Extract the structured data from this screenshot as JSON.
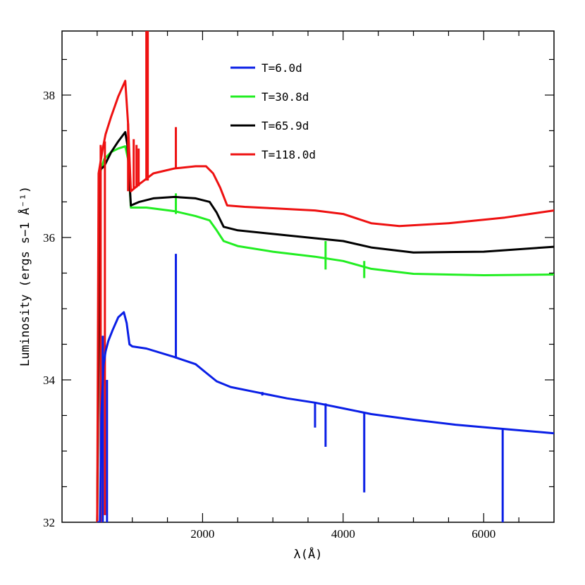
{
  "chart_data": {
    "type": "line",
    "title": "",
    "xlabel": "λ(Å)",
    "ylabel": "Luminosity (ergs s−1 Å⁻¹)",
    "xlim": [
      0,
      7000
    ],
    "ylim": [
      32,
      38.9
    ],
    "x_ticks": [
      2000,
      4000,
      6000
    ],
    "y_ticks": [
      32,
      34,
      36,
      38
    ],
    "grid": false,
    "legend_position": "top-center",
    "series": [
      {
        "name": "T=6.0d",
        "color": "#0a1fe6",
        "points": [
          [
            500,
            32.0
          ],
          [
            540,
            32.0
          ],
          [
            560,
            33.5
          ],
          [
            590,
            34.2
          ],
          [
            620,
            34.4
          ],
          [
            660,
            34.55
          ],
          [
            720,
            34.7
          ],
          [
            800,
            34.88
          ],
          [
            880,
            34.95
          ],
          [
            920,
            34.8
          ],
          [
            960,
            34.5
          ],
          [
            1000,
            34.47
          ],
          [
            1200,
            34.44
          ],
          [
            1600,
            34.32
          ],
          [
            1900,
            34.22
          ],
          [
            2050,
            34.1
          ],
          [
            2200,
            33.98
          ],
          [
            2400,
            33.9
          ],
          [
            2800,
            33.82
          ],
          [
            3200,
            33.74
          ],
          [
            3600,
            33.68
          ],
          [
            4000,
            33.6
          ],
          [
            4400,
            33.52
          ],
          [
            5000,
            33.44
          ],
          [
            5600,
            33.37
          ],
          [
            6300,
            33.31
          ],
          [
            7000,
            33.25
          ]
        ],
        "spikes": [
          [
            580,
            34.62,
            31.95
          ],
          [
            640,
            34.0,
            31.95
          ],
          [
            1620,
            35.77,
            34.3
          ],
          [
            2850,
            33.83,
            33.78
          ],
          [
            3600,
            33.68,
            33.33
          ],
          [
            3750,
            33.67,
            33.06
          ],
          [
            4300,
            33.55,
            32.42
          ],
          [
            6270,
            33.3,
            31.95
          ]
        ]
      },
      {
        "name": "T=30.8d",
        "color": "#22ee22",
        "points": [
          [
            500,
            32.0
          ],
          [
            540,
            36.9
          ],
          [
            600,
            37.1
          ],
          [
            700,
            37.2
          ],
          [
            800,
            37.25
          ],
          [
            900,
            37.28
          ],
          [
            940,
            37.1
          ],
          [
            980,
            36.42
          ],
          [
            1200,
            36.42
          ],
          [
            1600,
            36.37
          ],
          [
            1900,
            36.3
          ],
          [
            2100,
            36.24
          ],
          [
            2200,
            36.1
          ],
          [
            2300,
            35.95
          ],
          [
            2500,
            35.88
          ],
          [
            3000,
            35.8
          ],
          [
            3600,
            35.73
          ],
          [
            4000,
            35.67
          ],
          [
            4400,
            35.56
          ],
          [
            5000,
            35.49
          ],
          [
            6000,
            35.47
          ],
          [
            7000,
            35.48
          ]
        ],
        "spikes": [
          [
            1620,
            36.62,
            36.33
          ],
          [
            3750,
            35.95,
            35.55
          ],
          [
            4300,
            35.67,
            35.43
          ]
        ]
      },
      {
        "name": "T=65.9d",
        "color": "#000000",
        "points": [
          [
            500,
            32.0
          ],
          [
            540,
            36.95
          ],
          [
            600,
            37.0
          ],
          [
            700,
            37.2
          ],
          [
            800,
            37.35
          ],
          [
            900,
            37.48
          ],
          [
            930,
            37.3
          ],
          [
            980,
            36.45
          ],
          [
            1100,
            36.5
          ],
          [
            1300,
            36.55
          ],
          [
            1600,
            36.57
          ],
          [
            1900,
            36.55
          ],
          [
            2100,
            36.5
          ],
          [
            2200,
            36.35
          ],
          [
            2300,
            36.15
          ],
          [
            2500,
            36.1
          ],
          [
            3000,
            36.05
          ],
          [
            3600,
            35.99
          ],
          [
            4000,
            35.95
          ],
          [
            4400,
            35.86
          ],
          [
            5000,
            35.79
          ],
          [
            6000,
            35.8
          ],
          [
            7000,
            35.87
          ]
        ],
        "spikes": []
      },
      {
        "name": "T=118.0d",
        "color": "#ee1111",
        "points": [
          [
            500,
            32.0
          ],
          [
            520,
            36.9
          ],
          [
            580,
            37.25
          ],
          [
            620,
            37.45
          ],
          [
            700,
            37.7
          ],
          [
            800,
            37.98
          ],
          [
            900,
            38.2
          ],
          [
            940,
            37.6
          ],
          [
            980,
            36.65
          ],
          [
            1100,
            36.75
          ],
          [
            1300,
            36.9
          ],
          [
            1600,
            36.97
          ],
          [
            1900,
            37.0
          ],
          [
            2050,
            37.0
          ],
          [
            2150,
            36.9
          ],
          [
            2250,
            36.7
          ],
          [
            2350,
            36.45
          ],
          [
            2600,
            36.43
          ],
          [
            3000,
            36.41
          ],
          [
            3600,
            36.38
          ],
          [
            4000,
            36.33
          ],
          [
            4400,
            36.2
          ],
          [
            4800,
            36.16
          ],
          [
            5500,
            36.2
          ],
          [
            6300,
            36.28
          ],
          [
            7000,
            36.38
          ]
        ],
        "spikes": [
          [
            550,
            37.3,
            31.95
          ],
          [
            610,
            37.35,
            32.1
          ],
          [
            940,
            37.6,
            36.65
          ],
          [
            1020,
            37.38,
            36.68
          ],
          [
            1060,
            37.3,
            36.7
          ],
          [
            1090,
            37.25,
            36.72
          ],
          [
            1200,
            38.9,
            36.8
          ],
          [
            1220,
            38.9,
            36.8
          ],
          [
            1620,
            37.55,
            36.98
          ]
        ]
      }
    ]
  }
}
